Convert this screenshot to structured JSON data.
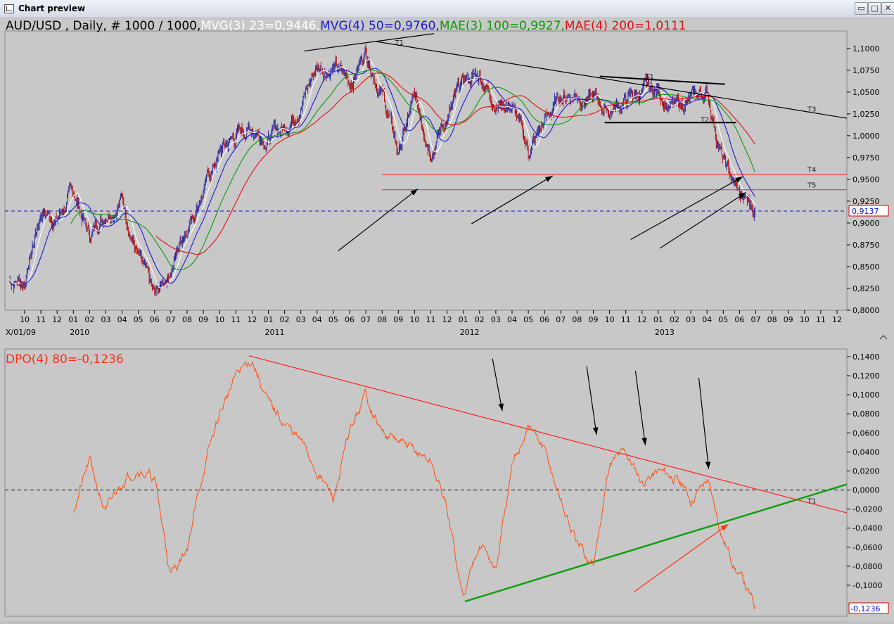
{
  "window": {
    "title": "Chart preview",
    "buttons": [
      "restore",
      "maximize",
      "close"
    ]
  },
  "colors": {
    "background": "#c8c8c8",
    "candle_up": "#2a2aa0",
    "candle_down": "#b01010",
    "ma_white": "#ffffff",
    "ma_blue": "#1a1ad0",
    "ma_green": "#0a9a0a",
    "ma_red": "#e01010",
    "dpo": "#ff5010",
    "trend_green": "#10a010",
    "trend_red": "#ff2020",
    "dashed_blue": "#1010c0"
  },
  "top_legend": {
    "symbol": "AUD/USD , Daily, # 1000 / 1000,",
    "ma1": " MVG(3) 23=0,9446,",
    "ma2": " MVG(4) 50=0,9760,",
    "ma3": " MAE(3) 100=0,9927,",
    "ma4": " MAE(4) 200=1,0111"
  },
  "bottom_legend": "DPO(4) 80=-0,1236",
  "price_axis": [
    "1,1000",
    "1,0750",
    "1,0500",
    "1,0250",
    "1,0000",
    "0,9750",
    "0,9500",
    "0,9250",
    "0,9000",
    "0,8750",
    "0,8500",
    "0,8250",
    "0,8000"
  ],
  "price_tag": "0,9137",
  "dpo_axis": [
    "0,1400",
    "0,1200",
    "0,1000",
    "0,0800",
    "0,0600",
    "0,0400",
    "0,0200",
    "0,0000",
    "-0,0200",
    "-0,0400",
    "-0,0600",
    "-0,0800",
    "-0,1000"
  ],
  "dpo_tag": "-0,1236",
  "x_months": [
    "10",
    "11",
    "12",
    "01",
    "02",
    "03",
    "04",
    "05",
    "06",
    "07",
    "08",
    "09",
    "10",
    "11",
    "12",
    "01",
    "02",
    "03",
    "04",
    "05",
    "06",
    "07",
    "08",
    "09",
    "10",
    "11",
    "12",
    "01",
    "02",
    "03",
    "04",
    "05",
    "06",
    "07",
    "08",
    "09",
    "10",
    "11",
    "12",
    "01",
    "02",
    "03",
    "04",
    "05",
    "06",
    "07",
    "08",
    "09",
    "10",
    "11",
    "12"
  ],
  "x_years": [
    "X/01/09",
    "2010",
    "2011",
    "2012",
    "2013"
  ],
  "trend_labels": {
    "top": [
      "T1",
      "T1",
      "T2",
      "T3",
      "T4",
      "T5"
    ],
    "bottom": "T1"
  },
  "chart_data": [
    {
      "type": "candlestick",
      "title": "AUD/USD , Daily",
      "ylim": [
        0.8,
        1.12
      ],
      "x_range": [
        "2009-10",
        "2013-12"
      ],
      "last_price": 0.9137,
      "series": [
        {
          "name": "MVG(3) 23",
          "last": 0.9446
        },
        {
          "name": "MVG(4) 50",
          "last": 0.976
        },
        {
          "name": "MAE(3) 100",
          "last": 0.9927
        },
        {
          "name": "MAE(4) 200",
          "last": 1.0111
        }
      ],
      "price_path": [
        [
          "2009-10",
          0.835
        ],
        [
          "2009-11",
          0.915
        ],
        [
          "2009-12",
          0.905
        ],
        [
          "2010-01",
          0.935
        ],
        [
          "2010-02",
          0.885
        ],
        [
          "2010-03",
          0.915
        ],
        [
          "2010-04",
          0.93
        ],
        [
          "2010-05",
          0.86
        ],
        [
          "2010-06",
          0.81
        ],
        [
          "2010-07",
          0.85
        ],
        [
          "2010-08",
          0.9
        ],
        [
          "2010-09",
          0.94
        ],
        [
          "2010-10",
          0.98
        ],
        [
          "2010-11",
          1.0
        ],
        [
          "2010-12",
          1.01
        ],
        [
          "2011-01",
          1.0
        ],
        [
          "2011-02",
          1.01
        ],
        [
          "2011-03",
          1.04
        ],
        [
          "2011-04",
          1.08
        ],
        [
          "2011-05",
          1.08
        ],
        [
          "2011-06",
          1.06
        ],
        [
          "2011-07",
          1.1
        ],
        [
          "2011-08",
          1.05
        ],
        [
          "2011-09",
          0.98
        ],
        [
          "2011-10",
          1.04
        ],
        [
          "2011-11",
          0.99
        ],
        [
          "2011-12",
          1.02
        ],
        [
          "2012-01",
          1.06
        ],
        [
          "2012-02",
          1.07
        ],
        [
          "2012-03",
          1.04
        ],
        [
          "2012-04",
          1.035
        ],
        [
          "2012-05",
          0.98
        ],
        [
          "2012-06",
          1.015
        ],
        [
          "2012-07",
          1.045
        ],
        [
          "2012-08",
          1.05
        ],
        [
          "2012-09",
          1.04
        ],
        [
          "2012-10",
          1.03
        ],
        [
          "2012-11",
          1.04
        ],
        [
          "2012-12",
          1.05
        ],
        [
          "2013-01",
          1.05
        ],
        [
          "2013-02",
          1.03
        ],
        [
          "2013-03",
          1.04
        ],
        [
          "2013-04",
          1.05
        ],
        [
          "2013-05",
          0.97
        ],
        [
          "2013-06",
          0.93
        ],
        [
          "2013-07",
          0.9137
        ]
      ],
      "horizontal_lines": {
        "T4": 0.9555,
        "T5": 0.938,
        "T2": 1.015
      }
    },
    {
      "type": "line",
      "title": "DPO(4) 80",
      "ylim": [
        -0.13,
        0.145
      ],
      "last": -0.1236,
      "points": [
        [
          "2010-01",
          -0.02
        ],
        [
          "2010-02",
          0.03
        ],
        [
          "2010-03",
          -0.025
        ],
        [
          "2010-04",
          0.01
        ],
        [
          "2010-05",
          0.025
        ],
        [
          "2010-06",
          0.01
        ],
        [
          "2010-07",
          -0.09
        ],
        [
          "2010-08",
          -0.06
        ],
        [
          "2010-09",
          0.02
        ],
        [
          "2010-10",
          0.08
        ],
        [
          "2010-11",
          0.12
        ],
        [
          "2010-12",
          0.138
        ],
        [
          "2011-01",
          0.09
        ],
        [
          "2011-02",
          0.07
        ],
        [
          "2011-03",
          0.05
        ],
        [
          "2011-04",
          0.02
        ],
        [
          "2011-05",
          -0.01
        ],
        [
          "2011-06",
          0.06
        ],
        [
          "2011-07",
          0.1
        ],
        [
          "2011-08",
          0.06
        ],
        [
          "2011-09",
          0.05
        ],
        [
          "2011-10",
          0.04
        ],
        [
          "2011-11",
          0.03
        ],
        [
          "2011-12",
          -0.02
        ],
        [
          "2012-01",
          -0.115
        ],
        [
          "2012-02",
          -0.05
        ],
        [
          "2012-03",
          -0.085
        ],
        [
          "2012-04",
          0.02
        ],
        [
          "2012-05",
          0.07
        ],
        [
          "2012-06",
          0.04
        ],
        [
          "2012-07",
          -0.01
        ],
        [
          "2012-08",
          -0.06
        ],
        [
          "2012-09",
          -0.08
        ],
        [
          "2012-10",
          0.03
        ],
        [
          "2012-11",
          0.04
        ],
        [
          "2012-12",
          0.01
        ],
        [
          "2013-01",
          0.02
        ],
        [
          "2013-02",
          0.015
        ],
        [
          "2013-03",
          -0.01
        ],
        [
          "2013-04",
          0.012
        ],
        [
          "2013-05",
          -0.05
        ],
        [
          "2013-06",
          -0.09
        ],
        [
          "2013-07",
          -0.1236
        ]
      ]
    }
  ]
}
